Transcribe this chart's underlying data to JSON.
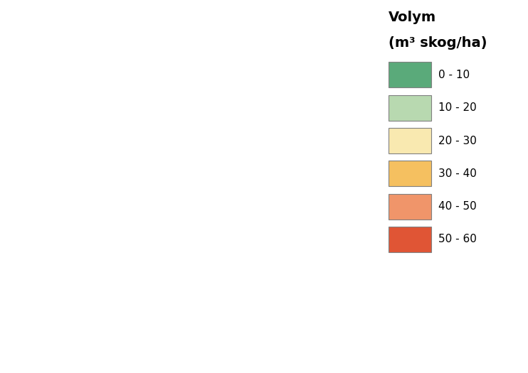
{
  "title": "Volym\n(m³ skog/ha)",
  "legend_labels": [
    "0 - 10",
    "10 - 20",
    "20 - 30",
    "30 - 40",
    "40 - 50",
    "50 - 60"
  ],
  "legend_colors": [
    "#5aaa7a",
    "#b8d9b0",
    "#f9e9b0",
    "#f5c060",
    "#f0956a",
    "#e05535"
  ],
  "background_color": "#ffffff",
  "edge_color": "#909090",
  "water_color": "#a8d0e6",
  "outer_edge_color": "#404040",
  "figsize": [
    7.42,
    5.25
  ],
  "dpi": 100,
  "legend_title_fontsize": 14,
  "legend_fontsize": 11,
  "map_xlim": [
    10.9,
    19.6
  ],
  "map_ylim": [
    55.0,
    62.5
  ],
  "municipality_colors": {
    "Strömstad": "#5aaa7a",
    "Tanum": "#5aaa7a",
    "Sotenäs": "#5aaa7a",
    "Munkedal": "#5aaa7a",
    "Lysekil": "#5aaa7a",
    "Orust": "#5aaa7a",
    "Tjörn": "#5aaa7a",
    "Stenungsund": "#5aaa7a",
    "Kungälv": "#5aaa7a",
    "Göteborg": "#b8d9b0",
    "Mölndal": "#b8d9b0",
    "Härryda": "#b8d9b0",
    "Partille": "#b8d9b0",
    "Lerum": "#b8d9b0",
    "Alingsås": "#b8d9b0",
    "Vårgårda": "#b8d9b0",
    "Herrljunga": "#b8d9b0",
    "Ulricehamn": "#f9e9b0",
    "Borås": "#f5c060",
    "Bollebygd": "#f5c060",
    "Mark": "#f9e9b0",
    "Svenljunga": "#f5c060",
    "Tranemo": "#f5c060",
    "Gislaved": "#f5c060",
    "Värnamo": "#f5c060",
    "Gnosjö": "#f5c060",
    "Vaggeryd": "#b8d9b0",
    "Jönköping": "#b8d9b0",
    "Mullsjö": "#b8d9b0",
    "Habo": "#b8d9b0",
    "Tidaholm": "#f5c060",
    "Falköping": "#f5c060",
    "Skövde": "#f5c060",
    "Tibro": "#f5c060",
    "Karlsborg": "#f9e9b0",
    "Hjo": "#f9e9b0",
    "Töreboda": "#f9e9b0",
    "Mariestad": "#f9e9b0",
    "Lidköping": "#f9e9b0",
    "Götene": "#f9e9b0",
    "Vara": "#f9e9b0",
    "Essunga": "#f9e9b0",
    "Grästorp": "#f9e9b0",
    "Västra Götaland": "#f9e9b0",
    "Trollhättan": "#b8d9b0",
    "Vänersborg": "#b8d9b0",
    "Färgelanda": "#b8d9b0",
    "Mellerud": "#b8d9b0",
    "Bengtsfors": "#5aaa7a",
    "Dals-Ed": "#5aaa7a",
    "Åmål": "#b8d9b0",
    "Säffle": "#5aaa7a",
    "Arvika": "#5aaa7a",
    "Eda": "#5aaa7a",
    "Torsby": "#5aaa7a",
    "Sunne": "#5aaa7a",
    "Hagfors": "#5aaa7a",
    "Filipstad": "#5aaa7a",
    "Storfors": "#5aaa7a",
    "Kristinehamn": "#5aaa7a",
    "Degerfors": "#b8d9b0",
    "Karlskoga": "#b8d9b0",
    "Lekeberg": "#b8d9b0",
    "Örebro": "#b8d9b0",
    "Kumla": "#b8d9b0",
    "Hallsberg": "#b8d9b0",
    "Askersund": "#b8d9b0",
    "Laxå": "#b8d9b0",
    "Finspång": "#b8d9b0",
    "Norrköping": "#b8d9b0",
    "Söderköping": "#b8d9b0",
    "Åtvidaberg": "#b8d9b0",
    "Linköping": "#b8d9b0",
    "Mjölby": "#b8d9b0",
    "Motala": "#b8d9b0",
    "Vadstena": "#b8d9b0",
    "Ödeshög": "#b8d9b0",
    "Boxholm": "#b8d9b0",
    "Kinda": "#b8d9b0",
    "Ydre": "#b8d9b0",
    "Tranås": "#b8d9b0",
    "Aneby": "#b8d9b0",
    "Nässjö": "#b8d9b0",
    "Eksjö": "#b8d9b0",
    "Sävsjö": "#b8d9b0",
    "Vetlanda": "#f5c060",
    "Uppvidinge": "#b8d9b0",
    "Lessebo": "#b8d9b0",
    "Tingsryd": "#b8d9b0",
    "Alvesta": "#b8d9b0",
    "Växjö": "#b8d9b0",
    "Ljungby": "#b8d9b0",
    "Markaryd": "#b8d9b0",
    "Älmhult": "#b8d9b0",
    "Osby": "#b8d9b0",
    "Östra Göinge": "#b8d9b0",
    "Kristianstad": "#b8d9b0",
    "Bromölla": "#b8d9b0",
    "Hässleholm": "#b8d9b0",
    "Perstorp": "#b8d9b0",
    "Klippan": "#b8d9b0",
    "Åstorp": "#b8d9b0",
    "Bjuv": "#b8d9b0",
    "Helsingborg": "#b8d9b0",
    "Höganäs": "#b8d9b0",
    "Ängelholm": "#b8d9b0",
    "Båstad": "#b8d9b0",
    "Laholm": "#b8d9b0",
    "Hylte": "#b8d9b0",
    "Halmstad": "#b8d9b0",
    "Falkenberg": "#b8d9b0",
    "Varberg": "#b8d9b0",
    "Kungsbacka": "#b8d9b0",
    "Skaraborgs": "#f5c060",
    "Värmland": "#5aaa7a",
    "Östergötland": "#b8d9b0",
    "Kalmar": "#5aaa7a",
    "Kronoberg": "#b8d9b0",
    "Blekinge": "#b8d9b0",
    "Skåne": "#b8d9b0",
    "Halland": "#b8d9b0",
    "Gotland": "#b8d9b0"
  },
  "county_colors": {
    "Värmlands län": "#5aaa7a",
    "Örebro län": "#b8d9b0",
    "Östergötlands län": "#b8d9b0",
    "Kalmar län": "#5aaa7a",
    "Blekinge län": "#b8d9b0",
    "Skåne län": "#b8d9b0",
    "Hallands län": "#b8d9b0",
    "Västra Götalands län": "#f5c060",
    "Jönköpings län": "#b8d9b0",
    "Kronobergs län": "#b8d9b0",
    "Gotlands län": "#b8d9b0"
  }
}
